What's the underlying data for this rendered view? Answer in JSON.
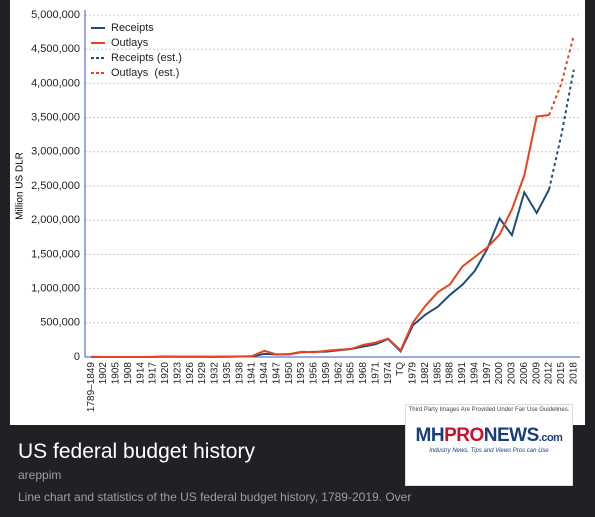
{
  "chart_data": {
    "type": "line",
    "y_label": "Million US DLR",
    "categories": [
      "1789–1849",
      "1902",
      "1905",
      "1908",
      "1914",
      "1917",
      "1920",
      "1923",
      "1926",
      "1929",
      "1932",
      "1935",
      "1938",
      "1941",
      "1944",
      "1947",
      "1950",
      "1953",
      "1956",
      "1959",
      "1962",
      "1965",
      "1968",
      "1971",
      "1974",
      "TQ",
      "1979",
      "1982",
      "1985",
      "1988",
      "1991",
      "1994",
      "1997",
      "2000",
      "2003",
      "2006",
      "2009",
      "2012",
      "2015",
      "2018"
    ],
    "series": [
      {
        "name": "Receipts",
        "color": "#1f4f7a",
        "dashed": false,
        "values": [
          1000,
          600,
          500,
          600,
          700,
          1100,
          6600,
          3900,
          3800,
          3900,
          1900,
          3700,
          6800,
          8700,
          45000,
          38500,
          39400,
          69600,
          74600,
          79200,
          99700,
          116800,
          153000,
          187100,
          263200,
          81200,
          463300,
          617800,
          734000,
          909200,
          1055000,
          1258600,
          1579200,
          2025200,
          1782300,
          2406900,
          2105000,
          2450000,
          null,
          null
        ]
      },
      {
        "name": "Outlays",
        "color": "#e8431c",
        "dashed": false,
        "values": [
          1100,
          500,
          600,
          700,
          700,
          2000,
          6400,
          3100,
          2900,
          3100,
          4700,
          6400,
          6800,
          13700,
          91300,
          34500,
          42600,
          76100,
          70600,
          92100,
          106800,
          118200,
          178100,
          210200,
          269400,
          96000,
          504000,
          745700,
          946300,
          1064400,
          1324200,
          1461800,
          1601100,
          1789000,
          2159900,
          2655100,
          3517700,
          3537000,
          null,
          null
        ]
      },
      {
        "name": "Receipts (est.)",
        "color": "#1f4f7a",
        "dashed": true,
        "values": [
          null,
          null,
          null,
          null,
          null,
          null,
          null,
          null,
          null,
          null,
          null,
          null,
          null,
          null,
          null,
          null,
          null,
          null,
          null,
          null,
          null,
          null,
          null,
          null,
          null,
          null,
          null,
          null,
          null,
          null,
          null,
          null,
          null,
          null,
          null,
          null,
          null,
          2450000,
          3250000,
          4200000
        ]
      },
      {
        "name": "Outlays  (est.)",
        "color": "#e8431c",
        "dashed": true,
        "values": [
          null,
          null,
          null,
          null,
          null,
          null,
          null,
          null,
          null,
          null,
          null,
          null,
          null,
          null,
          null,
          null,
          null,
          null,
          null,
          null,
          null,
          null,
          null,
          null,
          null,
          null,
          null,
          null,
          null,
          null,
          null,
          null,
          null,
          null,
          null,
          null,
          null,
          3537000,
          4000000,
          4700000
        ]
      }
    ],
    "ylim": [
      0,
      5000000
    ],
    "yticks": [
      0,
      {
        "value": 500000,
        "label": "500,000"
      },
      {
        "value": 1000000,
        "label": "1,000,000"
      },
      {
        "value": 1500000,
        "label": "1,500,000"
      },
      {
        "value": 2000000,
        "label": "2,000,000"
      },
      {
        "value": 2500000,
        "label": "2,500,000"
      },
      {
        "value": 3000000,
        "label": "3,000,000"
      },
      {
        "value": 3500000,
        "label": "3,500,000"
      },
      {
        "value": 4000000,
        "label": "4,000,000"
      },
      {
        "value": 4500000,
        "label": "4,500,000"
      },
      {
        "value": 5000000,
        "label": "5,000,000"
      }
    ],
    "grid": true,
    "legend": "top-left"
  },
  "caption": {
    "title": "US federal budget history",
    "source": "areppim",
    "description": "Line chart and statistics of the US federal budget history, 1789-2019. Over"
  },
  "watermark": {
    "note": "Third Party Images Are Provided Under Fair Use Guidelines.",
    "logo": [
      "MH",
      "PRO",
      "NEWS",
      ".com"
    ],
    "tagline": "Industry News, Tips and Views Pros can Use"
  }
}
